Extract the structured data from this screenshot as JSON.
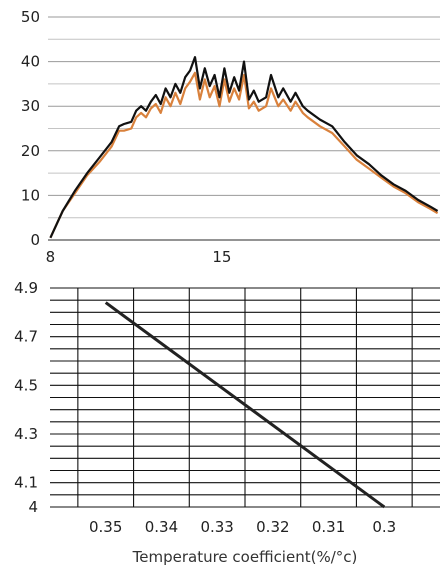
{
  "chart_data": [
    {
      "type": "line",
      "title": "",
      "xlabel": "",
      "ylabel": "",
      "xlim": [
        7.9,
        23.9
      ],
      "ylim": [
        0,
        50
      ],
      "x_ticks": [
        {
          "value": 8,
          "label": "8"
        },
        {
          "value": 15,
          "label": "15"
        }
      ],
      "y_ticks": [
        {
          "value": 0,
          "label": "0"
        },
        {
          "value": 10,
          "label": "10"
        },
        {
          "value": 20,
          "label": "20"
        },
        {
          "value": 30,
          "label": "30"
        },
        {
          "value": 40,
          "label": "40"
        },
        {
          "value": 50,
          "label": "50"
        }
      ],
      "y_minor_gridlines": [
        5,
        15,
        25,
        35,
        45
      ],
      "grid": "horizontal",
      "legend": "none",
      "series": [
        {
          "color": "#111111",
          "x": [
            8,
            8.5,
            9,
            9.5,
            10,
            10.5,
            10.8,
            11,
            11.3,
            11.5,
            11.7,
            11.9,
            12.1,
            12.3,
            12.5,
            12.7,
            12.9,
            13.1,
            13.3,
            13.5,
            13.7,
            13.9,
            14.1,
            14.3,
            14.5,
            14.7,
            14.9,
            15.1,
            15.3,
            15.5,
            15.7,
            15.9,
            16.1,
            16.3,
            16.5,
            16.8,
            17,
            17.3,
            17.5,
            17.8,
            18,
            18.3,
            18.5,
            19,
            19.5,
            20,
            20.5,
            21,
            21.5,
            22,
            22.5,
            23,
            23.5,
            23.8
          ],
          "values": [
            0.5,
            6.5,
            11,
            15,
            18.5,
            22,
            25.5,
            26,
            26.5,
            29,
            30,
            29,
            31,
            32.5,
            30.5,
            34,
            32,
            35,
            33,
            36.5,
            38,
            41,
            34,
            38.5,
            34.5,
            37,
            32,
            38.5,
            33,
            36.5,
            33.5,
            40,
            31.5,
            33.5,
            31,
            32,
            37,
            32,
            34,
            31,
            33,
            30,
            29,
            27,
            25.5,
            22,
            19,
            17,
            14.5,
            12.5,
            11,
            9,
            7.5,
            6.5
          ]
        },
        {
          "color": "#d9813c",
          "x": [
            8,
            8.5,
            9,
            9.5,
            10,
            10.5,
            10.8,
            11,
            11.3,
            11.5,
            11.7,
            11.9,
            12.1,
            12.3,
            12.5,
            12.7,
            12.9,
            13.1,
            13.3,
            13.5,
            13.7,
            13.9,
            14.1,
            14.3,
            14.5,
            14.7,
            14.9,
            15.1,
            15.3,
            15.5,
            15.7,
            15.9,
            16.1,
            16.3,
            16.5,
            16.8,
            17,
            17.3,
            17.5,
            17.8,
            18,
            18.3,
            18.5,
            19,
            19.5,
            20,
            20.5,
            21,
            21.5,
            22,
            22.5,
            23,
            23.5,
            23.8
          ],
          "values": [
            0.5,
            6.5,
            10.5,
            14.5,
            17.5,
            21,
            24.5,
            24.5,
            25,
            27.5,
            28.5,
            27.5,
            29.5,
            30.5,
            28.5,
            32,
            30,
            33,
            30.5,
            34,
            35.5,
            37.5,
            31.5,
            36,
            32,
            34.5,
            30,
            36,
            31,
            34,
            31.5,
            37,
            29.5,
            31,
            29,
            30,
            34,
            30,
            31.5,
            29,
            31,
            28.5,
            27.5,
            25.5,
            24,
            21,
            18,
            16,
            14,
            12,
            10.5,
            8.5,
            7,
            6
          ]
        }
      ]
    },
    {
      "type": "line",
      "title": "",
      "xlabel": "Temperature coefficient(%/°c)",
      "ylabel": "",
      "x_reversed": true,
      "xlim": [
        0.36,
        0.29
      ],
      "ylim": [
        4,
        4.9
      ],
      "x_ticks": [
        {
          "value": 0.35,
          "label": "0.35"
        },
        {
          "value": 0.34,
          "label": "0.34"
        },
        {
          "value": 0.33,
          "label": "0.33"
        },
        {
          "value": 0.32,
          "label": "0.32"
        },
        {
          "value": 0.31,
          "label": "0.31"
        },
        {
          "value": 0.3,
          "label": "0.3"
        }
      ],
      "x_gridlines": [
        0.355,
        0.345,
        0.335,
        0.325,
        0.315,
        0.305,
        0.295
      ],
      "y_ticks": [
        {
          "value": 4,
          "label": "4"
        },
        {
          "value": 4.1,
          "label": "4.1"
        },
        {
          "value": 4.3,
          "label": "4.3"
        },
        {
          "value": 4.5,
          "label": "4.5"
        },
        {
          "value": 4.7,
          "label": "4.7"
        },
        {
          "value": 4.9,
          "label": "4.9"
        }
      ],
      "y_gridlines": [
        4.05,
        4.1,
        4.15,
        4.2,
        4.25,
        4.3,
        4.35,
        4.4,
        4.45,
        4.5,
        4.55,
        4.6,
        4.65,
        4.7,
        4.75,
        4.8,
        4.85,
        4.9
      ],
      "grid": "both",
      "legend": "none",
      "series": [
        {
          "color": "#222222",
          "x": [
            0.35,
            0.3
          ],
          "values": [
            4.84,
            4.0
          ]
        }
      ]
    }
  ]
}
